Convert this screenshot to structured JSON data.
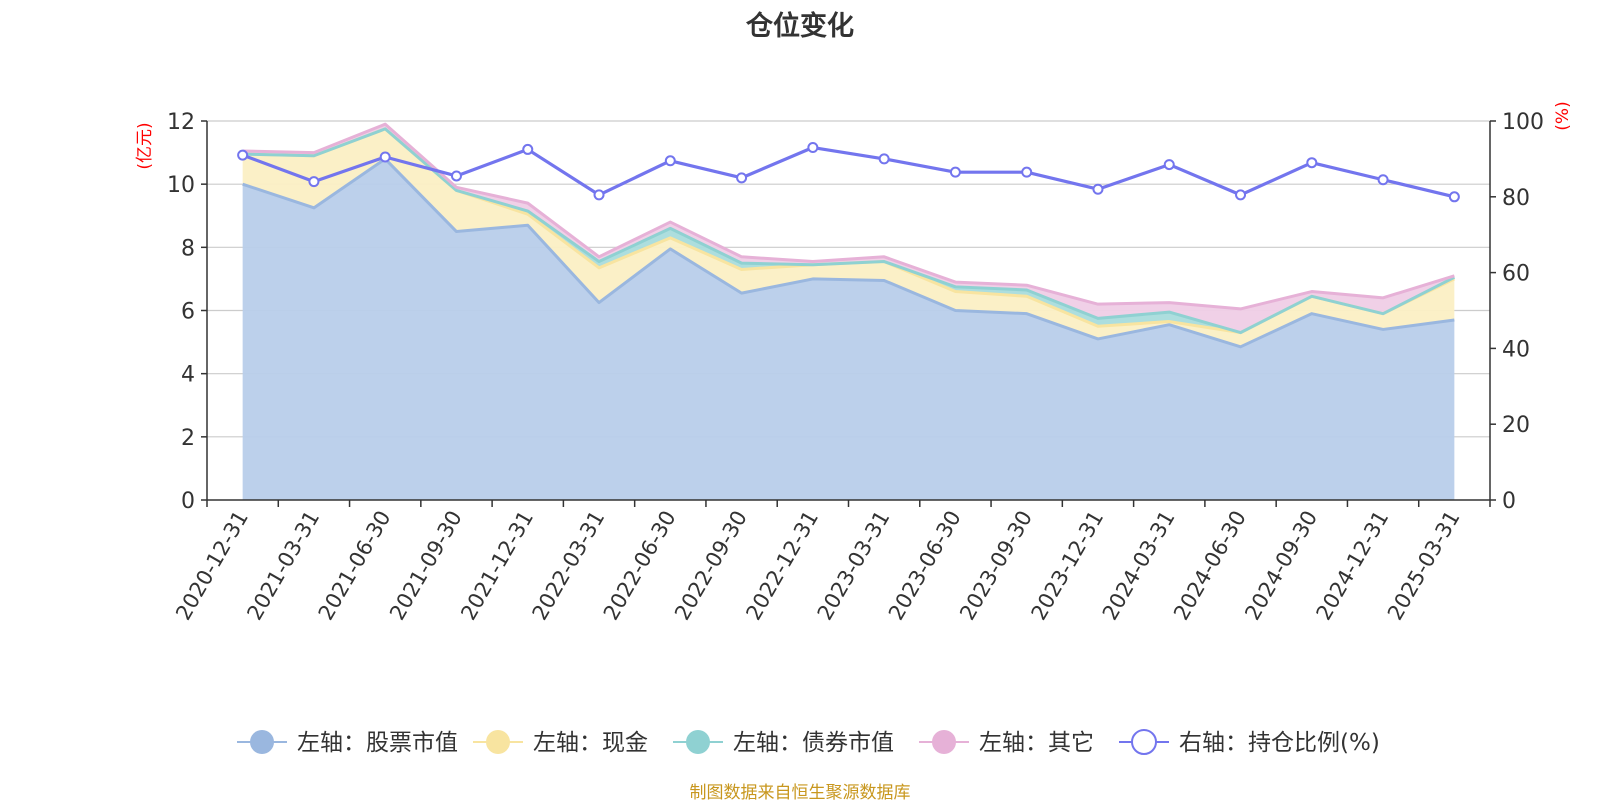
{
  "title": "仓位变化",
  "source_note": "制图数据来自恒生聚源数据库",
  "colors": {
    "stock": "#9ab7df",
    "stock_fill": "#b8cdea",
    "cash": "#f8e4a0",
    "cash_fill": "#fbefc4",
    "bond": "#8fd1d2",
    "bond_fill": "#a9dcdc",
    "other": "#e6b1d7",
    "other_fill": "#efcde6",
    "ratio": "#7375ee",
    "axis_unit": "#ff0000",
    "grid": "#cccccc",
    "axis": "#333333"
  },
  "chart_data": {
    "type": "area",
    "stacked": true,
    "categories": [
      "2020-12-31",
      "2021-03-31",
      "2021-06-30",
      "2021-09-30",
      "2021-12-31",
      "2022-03-31",
      "2022-06-30",
      "2022-09-30",
      "2022-12-31",
      "2023-03-31",
      "2023-06-30",
      "2023-09-30",
      "2023-12-31",
      "2024-03-31",
      "2024-06-30",
      "2024-09-30",
      "2024-12-31",
      "2025-03-31"
    ],
    "left_axis": {
      "unit": "(亿元)",
      "ylim": [
        0,
        12
      ],
      "ticks": [
        0,
        2,
        4,
        6,
        8,
        10,
        12
      ]
    },
    "right_axis": {
      "unit": "(%)",
      "ylim": [
        0,
        100
      ],
      "ticks": [
        0,
        20,
        40,
        60,
        80,
        100
      ]
    },
    "series": [
      {
        "name": "左轴：股票市值",
        "axis": "left",
        "type": "area",
        "values": [
          10.0,
          9.25,
          10.8,
          8.5,
          8.7,
          6.25,
          7.95,
          6.55,
          7.0,
          6.95,
          6.0,
          5.9,
          5.1,
          5.55,
          4.85,
          5.9,
          5.4,
          5.7
        ]
      },
      {
        "name": "左轴：现金",
        "axis": "left",
        "type": "area",
        "values": [
          0.95,
          1.65,
          0.95,
          1.3,
          0.35,
          1.1,
          0.35,
          0.75,
          0.45,
          0.6,
          0.6,
          0.55,
          0.4,
          0.1,
          0.45,
          0.55,
          0.5,
          1.3
        ]
      },
      {
        "name": "左轴：债券市值",
        "axis": "left",
        "type": "area",
        "values": [
          0.0,
          0.0,
          0.0,
          0.0,
          0.1,
          0.2,
          0.3,
          0.2,
          0.0,
          0.0,
          0.15,
          0.2,
          0.25,
          0.3,
          0.0,
          0.0,
          0.0,
          0.05
        ]
      },
      {
        "name": "左轴：其它",
        "axis": "left",
        "type": "area",
        "values": [
          0.1,
          0.1,
          0.15,
          0.1,
          0.25,
          0.15,
          0.2,
          0.2,
          0.1,
          0.15,
          0.15,
          0.15,
          0.45,
          0.3,
          0.75,
          0.15,
          0.5,
          0.05
        ]
      },
      {
        "name": "右轴：持仓比例(%)",
        "axis": "right",
        "type": "line",
        "values": [
          91.0,
          84.0,
          90.5,
          85.5,
          92.5,
          80.5,
          89.5,
          85.0,
          93.0,
          90.0,
          86.5,
          86.5,
          82.0,
          88.5,
          80.5,
          89.0,
          84.5,
          80.0
        ]
      }
    ],
    "legend_position": "bottom",
    "grid": true
  }
}
